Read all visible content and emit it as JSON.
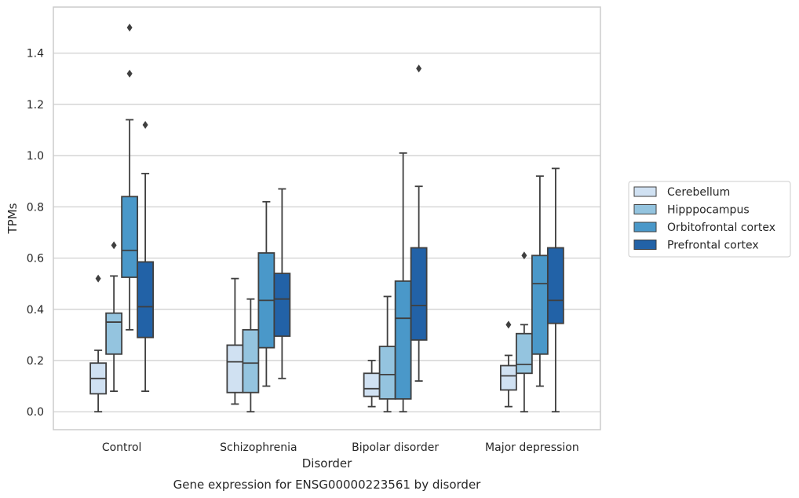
{
  "chart_data": {
    "type": "box",
    "caption": "Gene expression for ENSG00000223561 by disorder",
    "xlabel": "Disorder",
    "ylabel": "TPMs",
    "ylim": [
      -0.07,
      1.58
    ],
    "yticks": [
      "0.0",
      "0.2",
      "0.4",
      "0.6",
      "0.8",
      "1.0",
      "1.2",
      "1.4"
    ],
    "ytick_values": [
      0.0,
      0.2,
      0.4,
      0.6,
      0.8,
      1.0,
      1.2,
      1.4
    ],
    "grid": true,
    "legend_position": "right",
    "categories": [
      "Control",
      "Schizophrenia",
      "Bipolar disorder",
      "Major depression"
    ],
    "series": [
      {
        "name": "Cerebellum",
        "color": "#d0e1f2",
        "boxes": [
          {
            "whislo": 0.0,
            "q1": 0.07,
            "med": 0.13,
            "q3": 0.19,
            "whishi": 0.24,
            "fliers": [
              0.52
            ]
          },
          {
            "whislo": 0.03,
            "q1": 0.075,
            "med": 0.195,
            "q3": 0.26,
            "whishi": 0.52,
            "fliers": []
          },
          {
            "whislo": 0.02,
            "q1": 0.06,
            "med": 0.09,
            "q3": 0.15,
            "whishi": 0.2,
            "fliers": []
          },
          {
            "whislo": 0.02,
            "q1": 0.085,
            "med": 0.14,
            "q3": 0.18,
            "whishi": 0.22,
            "fliers": [
              0.34
            ]
          }
        ]
      },
      {
        "name": "Hipppocampus",
        "color": "#94c4df",
        "boxes": [
          {
            "whislo": 0.08,
            "q1": 0.225,
            "med": 0.35,
            "q3": 0.385,
            "whishi": 0.53,
            "fliers": [
              0.65
            ]
          },
          {
            "whislo": 0.0,
            "q1": 0.075,
            "med": 0.19,
            "q3": 0.32,
            "whishi": 0.44,
            "fliers": []
          },
          {
            "whislo": 0.0,
            "q1": 0.05,
            "med": 0.145,
            "q3": 0.255,
            "whishi": 0.45,
            "fliers": []
          },
          {
            "whislo": 0.0,
            "q1": 0.15,
            "med": 0.185,
            "q3": 0.305,
            "whishi": 0.34,
            "fliers": [
              0.61
            ]
          }
        ]
      },
      {
        "name": "Orbitofrontal cortex",
        "color": "#4a98c9",
        "boxes": [
          {
            "whislo": 0.32,
            "q1": 0.525,
            "med": 0.63,
            "q3": 0.84,
            "whishi": 1.14,
            "fliers": [
              1.32,
              1.5
            ]
          },
          {
            "whislo": 0.1,
            "q1": 0.25,
            "med": 0.435,
            "q3": 0.62,
            "whishi": 0.82,
            "fliers": []
          },
          {
            "whislo": 0.0,
            "q1": 0.05,
            "med": 0.365,
            "q3": 0.51,
            "whishi": 1.01,
            "fliers": []
          },
          {
            "whislo": 0.1,
            "q1": 0.225,
            "med": 0.5,
            "q3": 0.61,
            "whishi": 0.92,
            "fliers": []
          }
        ]
      },
      {
        "name": "Prefrontal cortex",
        "color": "#2262a7",
        "boxes": [
          {
            "whislo": 0.08,
            "q1": 0.29,
            "med": 0.41,
            "q3": 0.585,
            "whishi": 0.93,
            "fliers": [
              1.12
            ]
          },
          {
            "whislo": 0.13,
            "q1": 0.295,
            "med": 0.44,
            "q3": 0.54,
            "whishi": 0.87,
            "fliers": []
          },
          {
            "whislo": 0.12,
            "q1": 0.28,
            "med": 0.415,
            "q3": 0.64,
            "whishi": 0.88,
            "fliers": [
              1.34
            ]
          },
          {
            "whislo": 0.0,
            "q1": 0.345,
            "med": 0.435,
            "q3": 0.64,
            "whishi": 0.95,
            "fliers": []
          }
        ]
      }
    ]
  }
}
